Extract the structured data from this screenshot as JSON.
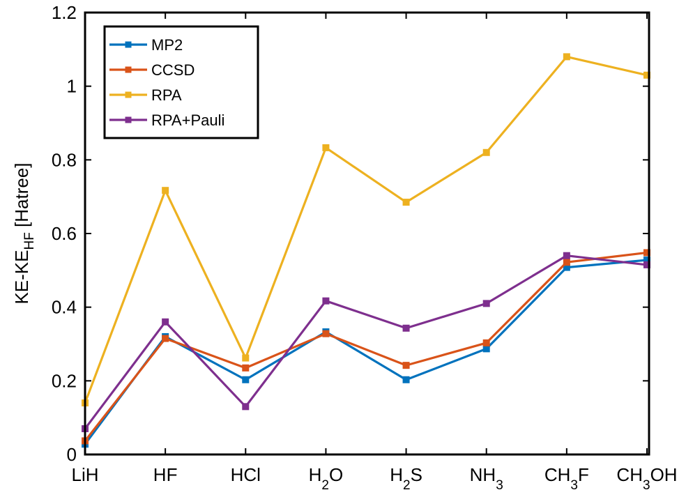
{
  "chart_data": {
    "type": "line",
    "ylabel": {
      "main": "KE-KE",
      "subscript": "HF",
      "unit": " [Hatree]"
    },
    "xlabel": "",
    "ylim": [
      0,
      1.2
    ],
    "yticks": [
      "0",
      "0.2",
      "0.4",
      "0.6",
      "0.8",
      "1",
      "1.2"
    ],
    "categories": [
      {
        "main": "LiH",
        "subscript": "",
        "tail": ""
      },
      {
        "main": "HF",
        "subscript": "",
        "tail": ""
      },
      {
        "main": "HCl",
        "subscript": "",
        "tail": ""
      },
      {
        "main": "H",
        "subscript": "2",
        "tail": "O"
      },
      {
        "main": "H",
        "subscript": "2",
        "tail": "S"
      },
      {
        "main": "NH",
        "subscript": "3",
        "tail": ""
      },
      {
        "main": "CH",
        "subscript": "3",
        "tail": "F"
      },
      {
        "main": "CH",
        "subscript": "3",
        "tail": "OH"
      }
    ],
    "series": [
      {
        "name": "MP2",
        "color": "#0072BD",
        "values": [
          0.028,
          0.32,
          0.203,
          0.333,
          0.203,
          0.287,
          0.508,
          0.528
        ]
      },
      {
        "name": "CCSD",
        "color": "#D95319",
        "values": [
          0.037,
          0.315,
          0.235,
          0.328,
          0.242,
          0.303,
          0.522,
          0.548
        ]
      },
      {
        "name": "RPA",
        "color": "#EDB120",
        "values": [
          0.14,
          0.717,
          0.262,
          0.833,
          0.685,
          0.82,
          1.08,
          1.03
        ]
      },
      {
        "name": "RPA+Pauli",
        "color": "#7E2F8E",
        "values": [
          0.07,
          0.36,
          0.13,
          0.417,
          0.343,
          0.41,
          0.54,
          0.515
        ]
      }
    ],
    "legend_position": "top-left",
    "grid": false,
    "marker": "square"
  }
}
